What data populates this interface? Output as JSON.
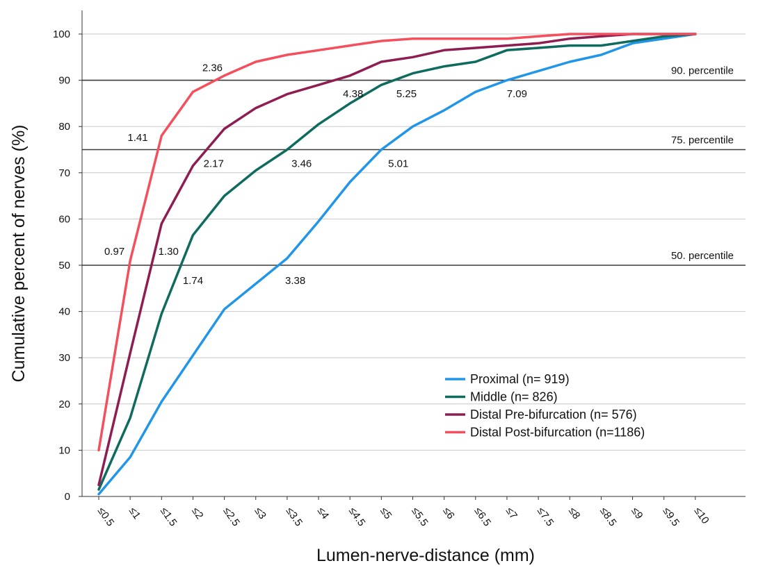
{
  "chart_data": {
    "type": "line",
    "xlabel": "Lumen-nerve-distance (mm)",
    "ylabel": "Cumulative percent of nerves (%)",
    "ylim": [
      0,
      100
    ],
    "yticks": [
      0,
      10,
      20,
      30,
      40,
      50,
      60,
      70,
      80,
      90,
      100
    ],
    "categories": [
      "≤0.5",
      "≤1",
      "≤1.5",
      "≤2",
      "≤2.5",
      "≤3",
      "≤3.5",
      "≤4",
      "≤4.5",
      "≤5",
      "≤5.5",
      "≤6",
      "≤6.5",
      "≤7",
      "≤7.5",
      "≤8",
      "≤8.5",
      "≤9",
      "≤9.5",
      "≤10"
    ],
    "grid": true,
    "legend_position": "bottom-right",
    "series": [
      {
        "name": "Proximal (n= 919)",
        "color": "#2196e8",
        "values": [
          0.5,
          8.5,
          20.5,
          30.5,
          40.5,
          46.0,
          51.5,
          59.5,
          68.0,
          75.0,
          80.0,
          83.5,
          87.5,
          90.0,
          92.0,
          94.0,
          95.5,
          98.0,
          99.0,
          100.0
        ]
      },
      {
        "name": "Middle (n= 826)",
        "color": "#0e6b5e",
        "values": [
          1.5,
          17.0,
          39.5,
          56.5,
          65.0,
          70.5,
          75.0,
          80.5,
          85.0,
          89.0,
          91.5,
          93.0,
          94.0,
          96.5,
          97.0,
          97.5,
          97.5,
          98.5,
          99.5,
          100.0
        ]
      },
      {
        "name": "Distal Pre-bifurcation (n= 576)",
        "color": "#8e1d52",
        "values": [
          2.5,
          31.0,
          59.0,
          71.5,
          79.5,
          84.0,
          87.0,
          89.0,
          91.0,
          94.0,
          95.0,
          96.5,
          97.0,
          97.5,
          98.0,
          99.0,
          99.5,
          100.0,
          100.0,
          100.0
        ]
      },
      {
        "name": "Distal Post-bifurcation (n=1186)",
        "color": "#f44f5c",
        "values": [
          10.0,
          51.0,
          78.0,
          87.5,
          91.0,
          94.0,
          95.5,
          96.5,
          97.5,
          98.5,
          99.0,
          99.0,
          99.0,
          99.0,
          99.5,
          100.0,
          100.0,
          100.0,
          100.0,
          100.0
        ]
      }
    ],
    "reference_lines": [
      {
        "value": 50,
        "label": "50. percentile"
      },
      {
        "value": 75,
        "label": "75. percentile"
      },
      {
        "value": 90,
        "label": "90. percentile"
      }
    ],
    "annotations": [
      {
        "text": "0.97",
        "x": 0.75,
        "y": 53
      },
      {
        "text": "1.30",
        "x": 1.61,
        "y": 53
      },
      {
        "text": "1.74",
        "x": 2.0,
        "y": 46.7
      },
      {
        "text": "3.38",
        "x": 3.63,
        "y": 46.7
      },
      {
        "text": "1.41",
        "x": 1.12,
        "y": 77.6
      },
      {
        "text": "2.17",
        "x": 2.33,
        "y": 72
      },
      {
        "text": "3.46",
        "x": 3.73,
        "y": 72
      },
      {
        "text": "5.01",
        "x": 5.27,
        "y": 72
      },
      {
        "text": "2.36",
        "x": 2.31,
        "y": 92.7
      },
      {
        "text": "4.38",
        "x": 4.55,
        "y": 87.1
      },
      {
        "text": "5.25",
        "x": 5.4,
        "y": 87.1
      },
      {
        "text": "7.09",
        "x": 7.16,
        "y": 87.1
      }
    ]
  }
}
